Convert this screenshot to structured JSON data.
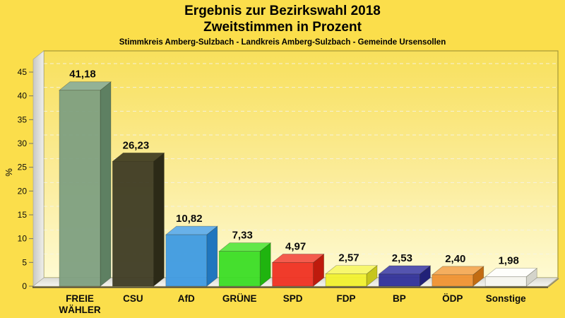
{
  "page": {
    "background": "#FBDE4B"
  },
  "header": {
    "title_line1": "Ergebnis zur Bezirkswahl 2018",
    "title_line2": "Zweitstimmen in Prozent",
    "subtitle": "Stimmkreis Amberg-Sulzbach - Landkreis Amberg-Sulzbach - Gemeinde Ursensollen"
  },
  "chart_data": {
    "type": "bar",
    "style": "3d-column",
    "title": "Ergebnis zur Bezirkswahl 2018 - Zweitstimmen in Prozent",
    "categories": [
      "FREIE WÄHLER",
      "CSU",
      "AfD",
      "GRÜNE",
      "SPD",
      "FDP",
      "BP",
      "ÖDP",
      "Sonstige"
    ],
    "values": [
      41.18,
      26.23,
      10.82,
      7.33,
      4.97,
      2.57,
      2.53,
      2.4,
      1.98
    ],
    "value_labels": [
      "41,18",
      "26,23",
      "10,82",
      "7,33",
      "4,97",
      "2,57",
      "2,53",
      "2,40",
      "1,98"
    ],
    "colors": [
      {
        "party": "FREIE WÄHLER",
        "front": "#7E9F81",
        "top": "#93B296",
        "side": "#5E8062"
      },
      {
        "party": "CSU",
        "front": "#3E3B24",
        "top": "#4C4829",
        "side": "#2C2A17"
      },
      {
        "party": "AfD",
        "front": "#3E9AE1",
        "top": "#68B1E9",
        "side": "#2076BE"
      },
      {
        "party": "GRÜNE",
        "front": "#3BDD25",
        "top": "#63E84A",
        "side": "#1FB40F"
      },
      {
        "party": "SPD",
        "front": "#EF3022",
        "top": "#F45B4D",
        "side": "#BE1B0D"
      },
      {
        "party": "FDP",
        "front": "#F1F12E",
        "top": "#F7F76E",
        "side": "#C6C61C"
      },
      {
        "party": "BP",
        "front": "#30309A",
        "top": "#5454AF",
        "side": "#212178"
      },
      {
        "party": "ÖDP",
        "front": "#F09232",
        "top": "#F5AE5E",
        "side": "#C26C12"
      },
      {
        "party": "Sonstige",
        "front": "#F7F7F1",
        "top": "#FEFEFB",
        "side": "#D4D4CB"
      }
    ],
    "xlabel": "",
    "ylabel": "%",
    "y_axis": {
      "label": "%",
      "ticks": [
        0,
        5,
        10,
        15,
        20,
        25,
        30,
        35,
        40,
        45
      ]
    },
    "ylim": [
      0,
      48
    ],
    "grid": {
      "horizontal": true,
      "dashed": true
    },
    "legend": "none"
  }
}
